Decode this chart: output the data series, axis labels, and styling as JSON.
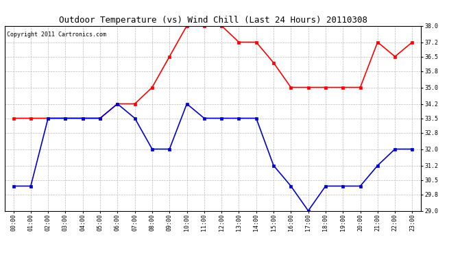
{
  "title": "Outdoor Temperature (vs) Wind Chill (Last 24 Hours) 20110308",
  "copyright": "Copyright 2011 Cartronics.com",
  "hours": [
    "00:00",
    "01:00",
    "02:00",
    "03:00",
    "04:00",
    "05:00",
    "06:00",
    "07:00",
    "08:00",
    "09:00",
    "10:00",
    "11:00",
    "12:00",
    "13:00",
    "14:00",
    "15:00",
    "16:00",
    "17:00",
    "18:00",
    "19:00",
    "20:00",
    "21:00",
    "22:00",
    "23:00"
  ],
  "red_data": [
    33.5,
    33.5,
    33.5,
    33.5,
    33.5,
    33.5,
    34.2,
    34.2,
    35.0,
    36.5,
    38.0,
    38.0,
    38.0,
    37.2,
    37.2,
    36.2,
    35.0,
    35.0,
    35.0,
    35.0,
    35.0,
    37.2,
    36.5,
    37.2
  ],
  "blue_data": [
    30.2,
    30.2,
    33.5,
    33.5,
    33.5,
    33.5,
    34.2,
    33.5,
    32.0,
    32.0,
    34.2,
    33.5,
    33.5,
    33.5,
    33.5,
    31.2,
    30.2,
    29.0,
    30.2,
    30.2,
    30.2,
    31.2,
    32.0,
    32.0
  ],
  "red_color": "#ff0000",
  "blue_color": "#0000cc",
  "ylim": [
    29.0,
    38.0
  ],
  "yticks": [
    29.0,
    29.8,
    30.5,
    31.2,
    32.0,
    32.8,
    33.5,
    34.2,
    35.0,
    35.8,
    36.5,
    37.2,
    38.0
  ],
  "background_color": "#ffffff",
  "grid_color": "#bbbbbb",
  "title_fontsize": 9,
  "copyright_fontsize": 6,
  "tick_fontsize": 6,
  "marker": "s",
  "marker_size": 2.5,
  "linewidth": 1.2
}
